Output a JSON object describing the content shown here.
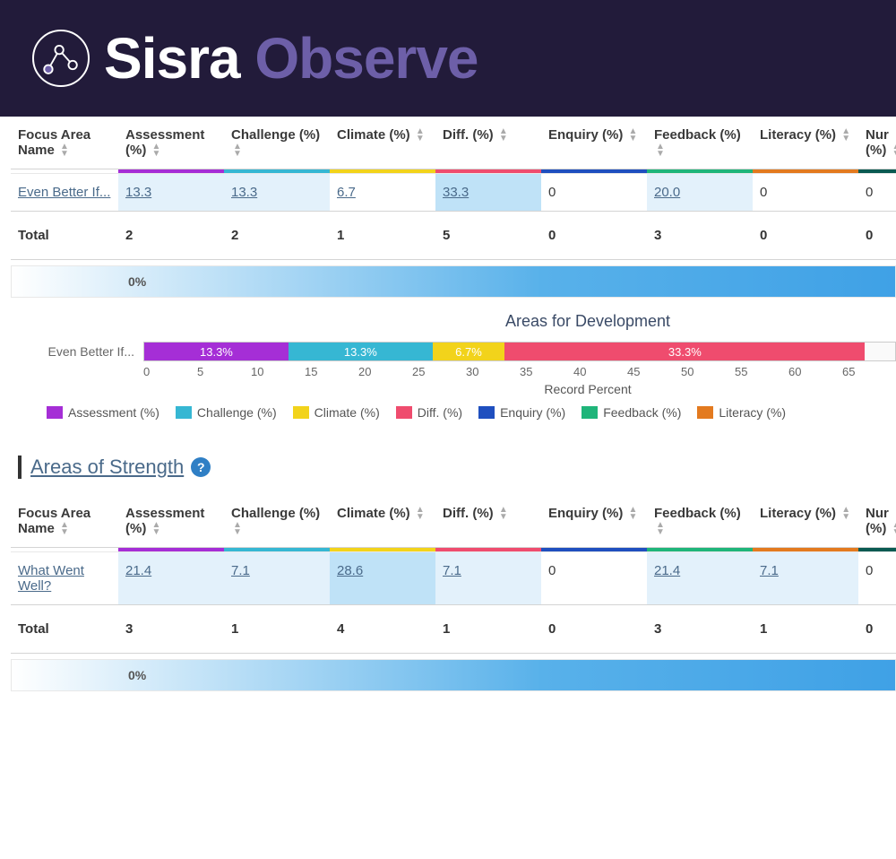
{
  "brand": {
    "part1": "Sisra",
    "part2": "Observe"
  },
  "header_bg": "#221b3a",
  "brand_color2": "#6d5fa8",
  "columns": [
    {
      "label": "Focus Area Name",
      "color": null
    },
    {
      "label": "Assessment (%)",
      "color": "#a52ed6"
    },
    {
      "label": "Challenge (%)",
      "color": "#36b7d3"
    },
    {
      "label": "Climate (%)",
      "color": "#f2d31b"
    },
    {
      "label": "Diff. (%)",
      "color": "#ef4c6e"
    },
    {
      "label": "Enquiry (%)",
      "color": "#1f4fbf"
    },
    {
      "label": "Feedback (%)",
      "color": "#1fb57a"
    },
    {
      "label": "Literacy (%)",
      "color": "#e37a1f"
    },
    {
      "label": "Nur (%)",
      "color": "#0a5a52"
    }
  ],
  "table1": {
    "row_label": "Even Better If...",
    "values": [
      "13.3",
      "13.3",
      "6.7",
      "33.3",
      "0",
      "20.0",
      "0",
      "0"
    ],
    "link": [
      true,
      true,
      true,
      true,
      false,
      true,
      false,
      false
    ],
    "hl": [
      "light",
      "light",
      "none",
      "strong",
      "none",
      "light",
      "none",
      "none"
    ],
    "totals": [
      "2",
      "2",
      "1",
      "5",
      "0",
      "3",
      "0",
      "0"
    ],
    "total_label": "Total",
    "grad_label": "0%"
  },
  "chart1": {
    "title": "Areas for Development",
    "row_label": "Even Better If...",
    "axis_label": "Record Percent",
    "ticks": [
      "0",
      "5",
      "10",
      "15",
      "20",
      "25",
      "30",
      "35",
      "40",
      "45",
      "50",
      "55",
      "60",
      "65"
    ],
    "segments": [
      {
        "label": "13.3%",
        "width": 19.2,
        "color": "#a52ed6"
      },
      {
        "label": "13.3%",
        "width": 19.2,
        "color": "#36b7d3"
      },
      {
        "label": "6.7%",
        "width": 9.6,
        "color": "#f2d31b"
      },
      {
        "label": "33.3%",
        "width": 48.0,
        "color": "#ef4c6e"
      }
    ],
    "legend": [
      {
        "label": "Assessment (%)",
        "color": "#a52ed6"
      },
      {
        "label": "Challenge (%)",
        "color": "#36b7d3"
      },
      {
        "label": "Climate (%)",
        "color": "#f2d31b"
      },
      {
        "label": "Diff. (%)",
        "color": "#ef4c6e"
      },
      {
        "label": "Enquiry (%)",
        "color": "#1f4fbf"
      },
      {
        "label": "Feedback (%)",
        "color": "#1fb57a"
      },
      {
        "label": "Literacy (%)",
        "color": "#e37a1f"
      }
    ]
  },
  "section2_title": "Areas of Strength",
  "table2": {
    "row_label": "What Went Well?",
    "values": [
      "21.4",
      "7.1",
      "28.6",
      "7.1",
      "0",
      "21.4",
      "7.1",
      "0"
    ],
    "link": [
      true,
      true,
      true,
      true,
      false,
      true,
      true,
      false
    ],
    "hl": [
      "light",
      "light",
      "strong",
      "light",
      "none",
      "light",
      "light",
      "none"
    ],
    "totals": [
      "3",
      "1",
      "4",
      "1",
      "0",
      "3",
      "1",
      "0"
    ],
    "total_label": "Total",
    "grad_label": "0%"
  }
}
